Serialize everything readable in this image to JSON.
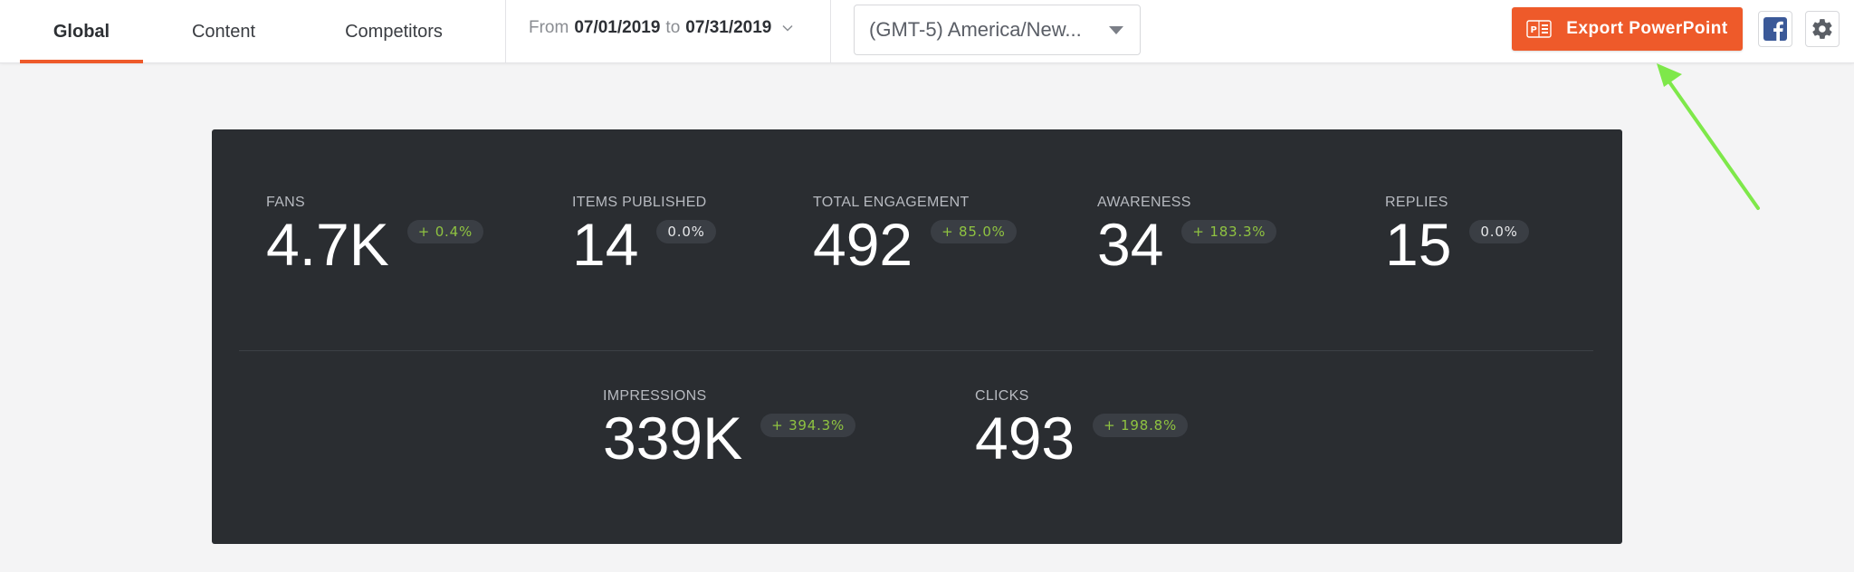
{
  "tabs": [
    {
      "label": "Global",
      "active": true
    },
    {
      "label": "Content",
      "active": false
    },
    {
      "label": "Competitors",
      "active": false
    }
  ],
  "date_range": {
    "from_label": "From",
    "from": "07/01/2019",
    "to_label": "to",
    "to": "07/31/2019"
  },
  "timezone": {
    "value": "(GMT-5) America/New..."
  },
  "export_button": {
    "label": "Export PowerPoint"
  },
  "colors": {
    "accent": "#ee5a2a",
    "card_bg": "#2a2d31",
    "positive": "#8fc341",
    "facebook": "#3b5998",
    "arrow": "#7ee84a"
  },
  "stats_top": [
    {
      "label": "FANS",
      "value": "4.7K",
      "change": "+ 0.4%",
      "trend": "up"
    },
    {
      "label": "ITEMS PUBLISHED",
      "value": "14",
      "change": "0.0%",
      "trend": "flat"
    },
    {
      "label": "TOTAL ENGAGEMENT",
      "value": "492",
      "change": "+ 85.0%",
      "trend": "up"
    },
    {
      "label": "AWARENESS",
      "value": "34",
      "change": "+ 183.3%",
      "trend": "up"
    },
    {
      "label": "REPLIES",
      "value": "15",
      "change": "0.0%",
      "trend": "flat"
    }
  ],
  "stats_bottom": [
    {
      "label": "IMPRESSIONS",
      "value": "339K",
      "change": "+ 394.3%",
      "trend": "up"
    },
    {
      "label": "CLICKS",
      "value": "493",
      "change": "+ 198.8%",
      "trend": "up"
    }
  ],
  "icons": {
    "export": "powerpoint-icon",
    "facebook": "facebook-icon",
    "settings": "gear-icon",
    "date_chevron": "chevron-down-icon",
    "tz_caret": "caret-down-icon",
    "annotation": "arrow-annotation"
  }
}
